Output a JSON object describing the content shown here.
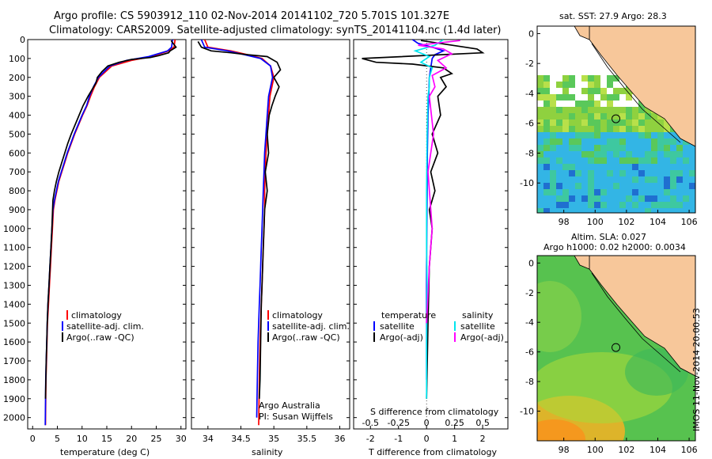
{
  "header": {
    "line1": "Argo profile: CS 5903912_110 02-Nov-2014 20141102_720 5.701S 101.327E",
    "line2": "Climatology: CARS2009. Satellite-adjusted climatology: synTS_20141104.nc (1.4d later)"
  },
  "stamp": "IMOS 11-Nov-2014 20:00:53",
  "colors": {
    "climatology": "#ff0000",
    "satellite": "#0000ff",
    "argo": "#000000",
    "sal_satellite": "#00e5ee",
    "sal_argo": "#ff00ff",
    "land": "#f7c79a",
    "sea_blue": "#33b5e5",
    "sea_green": "#5ac85a"
  },
  "chart_data": [
    {
      "type": "line",
      "name": "temperature-profile",
      "xlabel": "temperature (deg C)",
      "ylabel": "",
      "xlim": [
        -1,
        31
      ],
      "ylim": [
        2060,
        0
      ],
      "xticks": [
        0,
        5,
        10,
        15,
        20,
        25,
        30
      ],
      "yticks": [
        0,
        100,
        200,
        300,
        400,
        500,
        600,
        700,
        800,
        900,
        1000,
        1100,
        1200,
        1300,
        1400,
        1500,
        1600,
        1700,
        1800,
        1900,
        2000
      ],
      "legend": [
        "climatology",
        "satellite-adj. clim.",
        "Argo(..raw -QC)"
      ],
      "series": [
        {
          "name": "climatology",
          "color": "#ff0000",
          "x": [
            28.8,
            28.6,
            27.5,
            24,
            20,
            16,
            13.5,
            12.5,
            11.7,
            11,
            10.1,
            9.3,
            8.5,
            7.8,
            7.1,
            6.5,
            5.9,
            5.3,
            4.9,
            4.5,
            4.2,
            4.0,
            3.8,
            3.6,
            3.4,
            3.2,
            3.0,
            2.9,
            2.8,
            2.7,
            2.6
          ],
          "y": [
            0,
            40,
            60,
            90,
            110,
            140,
            200,
            250,
            300,
            350,
            400,
            450,
            500,
            550,
            600,
            650,
            700,
            750,
            800,
            850,
            900,
            1000,
            1100,
            1200,
            1300,
            1400,
            1500,
            1600,
            1700,
            1800,
            2040
          ]
        },
        {
          "name": "satellite-adj. clim.",
          "color": "#0000ff",
          "x": [
            28.3,
            28.1,
            27.3,
            23.5,
            19,
            15.6,
            13.3,
            12.3,
            11.5,
            10.9,
            10.0,
            9.2,
            8.4,
            7.7,
            7.0,
            6.4,
            5.8,
            5.2,
            4.8,
            4.4,
            4.1,
            3.9,
            3.7,
            3.5,
            3.3,
            3.1,
            2.95,
            2.85,
            2.75,
            2.65,
            2.55
          ],
          "y": [
            0,
            40,
            60,
            90,
            110,
            140,
            200,
            250,
            300,
            350,
            400,
            450,
            500,
            550,
            600,
            650,
            700,
            750,
            800,
            850,
            900,
            1000,
            1100,
            1200,
            1300,
            1400,
            1500,
            1600,
            1700,
            1800,
            2040
          ]
        },
        {
          "name": "Argo(..raw -QC)",
          "color": "#000000",
          "x": [
            28.0,
            28.4,
            29.0,
            27.8,
            27.5,
            25.5,
            23.8,
            20.0,
            17.5,
            15.2,
            14.0,
            13.1,
            12.8,
            11.2,
            10.2,
            9.4,
            8.6,
            7.8,
            7.1,
            6.5,
            5.9,
            5.3,
            4.8,
            4.4,
            4.1,
            3.9,
            3.7,
            3.5,
            3.3,
            3.1,
            2.95,
            2.85,
            2.75,
            2.6
          ],
          "y": [
            5,
            20,
            40,
            60,
            70,
            85,
            95,
            105,
            120,
            140,
            170,
            200,
            230,
            300,
            350,
            400,
            450,
            500,
            550,
            600,
            650,
            700,
            750,
            800,
            850,
            1000,
            1100,
            1200,
            1300,
            1400,
            1500,
            1600,
            1700,
            1900
          ]
        }
      ]
    },
    {
      "type": "line",
      "name": "salinity-profile",
      "xlabel": "salinity",
      "xlim": [
        33.75,
        36.15
      ],
      "ylim": [
        2060,
        0
      ],
      "xticks": [
        34,
        34.5,
        35,
        35.5,
        36
      ],
      "xticklabels": [
        "34",
        "34.5",
        "35",
        "35.5",
        "36"
      ],
      "legend": [
        "climatology",
        "satellite-adj. clim.",
        "Argo(..raw -QC)"
      ],
      "annotation": [
        "Argo Australia",
        "PI: Susan Wijffels"
      ],
      "series": [
        {
          "name": "climatology",
          "color": "#ff0000",
          "x": [
            33.95,
            34.0,
            34.35,
            34.6,
            34.82,
            34.95,
            35.0,
            34.97,
            34.94,
            34.92,
            34.9,
            34.88,
            34.87,
            34.86,
            34.86,
            34.85,
            34.84,
            34.83,
            34.82,
            34.81,
            34.8,
            34.79,
            34.78,
            34.77
          ],
          "y": [
            0,
            40,
            60,
            80,
            100,
            140,
            200,
            250,
            300,
            400,
            500,
            600,
            700,
            800,
            900,
            1000,
            1100,
            1200,
            1300,
            1400,
            1500,
            1600,
            1800,
            2040
          ]
        },
        {
          "name": "satellite-adj. clim.",
          "color": "#0000ff",
          "x": [
            33.9,
            33.95,
            34.3,
            34.55,
            34.8,
            34.95,
            34.98,
            34.95,
            34.92,
            34.9,
            34.88,
            34.86,
            34.85,
            34.84,
            34.83,
            34.82,
            34.81,
            34.8,
            34.79,
            34.78,
            34.77,
            34.76,
            34.75,
            34.74
          ],
          "y": [
            0,
            40,
            60,
            80,
            100,
            140,
            200,
            250,
            300,
            400,
            500,
            600,
            700,
            800,
            900,
            1000,
            1100,
            1200,
            1300,
            1400,
            1500,
            1600,
            1800,
            2000
          ]
        },
        {
          "name": "Argo(..raw -QC)",
          "color": "#000000",
          "x": [
            33.85,
            33.9,
            34.05,
            34.35,
            34.6,
            34.9,
            35.05,
            35.1,
            35.0,
            35.08,
            35.02,
            34.97,
            34.93,
            34.9,
            34.92,
            34.87,
            34.9,
            34.86,
            34.85,
            34.84,
            34.83,
            34.82,
            34.81,
            34.8,
            34.79,
            34.78
          ],
          "y": [
            10,
            40,
            60,
            70,
            80,
            90,
            120,
            160,
            200,
            250,
            300,
            350,
            400,
            500,
            600,
            700,
            800,
            900,
            1000,
            1100,
            1200,
            1300,
            1400,
            1600,
            1800,
            1900
          ]
        }
      ]
    },
    {
      "type": "line",
      "name": "difference-profile",
      "xlabel": "T difference from climatology",
      "toplabel": "S difference from climatology",
      "xlim": [
        -2.6,
        2.9
      ],
      "ylim": [
        2060,
        0
      ],
      "xticks": [
        -2,
        -1,
        0,
        1,
        2
      ],
      "sxticks": [
        -0.5,
        -0.25,
        0,
        0.25,
        0.5
      ],
      "sxticklabels": [
        "-0.5",
        "-0.25",
        "0",
        "0.25",
        "0.5"
      ],
      "legend_titles": [
        "temperature",
        "salinity"
      ],
      "legend_left": [
        "satellite",
        "Argo(-adj)"
      ],
      "legend_right": [
        "satellite",
        "Argo(-adj)"
      ],
      "series": [
        {
          "name": "satellite",
          "color": "#0000ff",
          "x": [
            -0.5,
            -0.3,
            0.2,
            0.6,
            0.3,
            0.2,
            0.15,
            0.1,
            0.08,
            0.05,
            0.03,
            0.02,
            0.01,
            0.0,
            0.0,
            0.0
          ],
          "y": [
            0,
            20,
            40,
            60,
            80,
            100,
            150,
            200,
            300,
            400,
            600,
            800,
            1000,
            1200,
            1600,
            1800
          ]
        },
        {
          "name": "Argo(-adj)",
          "color": "#000000",
          "x": [
            -0.2,
            1.8,
            2.0,
            -2.3,
            -1.8,
            -0.5,
            0.6,
            0.9,
            0.5,
            0.7,
            0.4,
            0.5,
            0.2,
            0.4,
            0.15,
            0.3,
            0.1,
            0.2,
            0.1,
            0.05,
            0.0
          ],
          "y": [
            5,
            50,
            70,
            100,
            120,
            130,
            150,
            180,
            200,
            250,
            300,
            400,
            500,
            600,
            700,
            800,
            900,
            1000,
            1200,
            1500,
            1900
          ]
        },
        {
          "name": "satellite (salinity)",
          "color": "#00e5ee",
          "x": [
            0.6,
            0.3,
            -0.4,
            0.1,
            -0.2,
            0.2,
            0.1,
            0.1,
            0.05,
            0.02,
            0.0,
            0.0,
            0.02,
            0.0,
            0.0
          ],
          "y": [
            0,
            30,
            60,
            90,
            120,
            150,
            200,
            250,
            300,
            500,
            800,
            1100,
            1300,
            1600,
            1900
          ]
        },
        {
          "name": "Argo(-adj) (salinity)",
          "color": "#ff00ff",
          "x": [
            1.2,
            -0.3,
            0.6,
            0.9,
            0.4,
            0.7,
            0.2,
            0.3,
            0.1,
            0.25,
            0.05,
            0.2,
            0.1,
            0.0
          ],
          "y": [
            5,
            30,
            50,
            75,
            110,
            150,
            190,
            250,
            300,
            500,
            700,
            1000,
            1200,
            1500
          ]
        }
      ]
    },
    {
      "type": "heatmap",
      "name": "sst-map",
      "title": "sat. SST: 27.9 Argo: 28.3",
      "xlim": [
        96.3,
        106.4
      ],
      "ylim": [
        -12,
        0.5
      ],
      "xticks": [
        98,
        100,
        102,
        104,
        106
      ],
      "yticks": [
        0,
        -2,
        -4,
        -6,
        -8,
        -10
      ],
      "argo_position": {
        "lon": 101.327,
        "lat": -5.701
      }
    },
    {
      "type": "heatmap",
      "name": "sla-map",
      "title": "Altim. SLA: 0.027",
      "subtitle": "Argo h1000: 0.02 h2000: 0.0034",
      "xlim": [
        96.3,
        106.4
      ],
      "ylim": [
        -12,
        0.5
      ],
      "xticks": [
        98,
        100,
        102,
        104,
        106
      ],
      "yticks": [
        0,
        -2,
        -4,
        -6,
        -8,
        -10
      ],
      "argo_position": {
        "lon": 101.327,
        "lat": -5.701
      }
    }
  ]
}
